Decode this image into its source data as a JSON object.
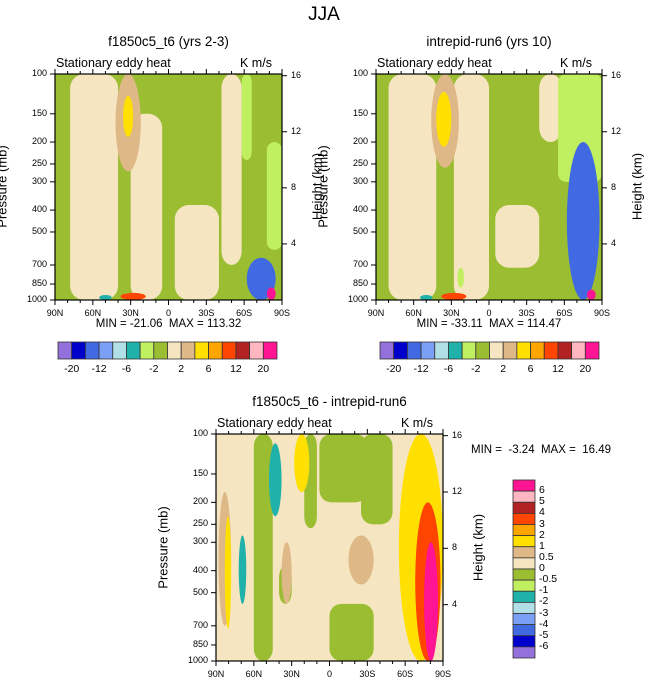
{
  "page": {
    "title": "JJA"
  },
  "chart_data": [
    {
      "type": "heatmap",
      "subtype": "filled-contour latitude-pressure cross section",
      "title": "f1850c5_t6 (yrs 2-3)",
      "left_string": "Stationary eddy heat",
      "right_string": "K m/s",
      "xlabel": "",
      "ylabel": "Pressure (mb)",
      "ylabel_right": "Height (km)",
      "x_ticks": [
        "90N",
        "60N",
        "30N",
        "0",
        "30S",
        "60S",
        "90S"
      ],
      "x_range": [
        90,
        -90
      ],
      "y_ticks": [
        "100",
        "150",
        "200",
        "250",
        "300",
        "400",
        "500",
        "700",
        "850",
        "1000"
      ],
      "y_range_mb": [
        1000,
        100
      ],
      "y_scale": "log",
      "right_ticks": [
        "16",
        "12",
        "8",
        "4"
      ],
      "min_label": "MIN = -21.06",
      "max_label": "MAX = 113.32",
      "min": -21.06,
      "max": 113.32,
      "colorbar": {
        "orientation": "horizontal",
        "colors": [
          "#9370db",
          "#0000cd",
          "#4169e1",
          "#7b9ff5",
          "#b0e0e6",
          "#20b2aa",
          "#c0f060",
          "#9abd32",
          "#f5e5c0",
          "#deb887",
          "#ffe000",
          "#ffa500",
          "#ff4500",
          "#b22222",
          "#ffb6c1",
          "#ff1493"
        ],
        "labels": [
          "-20",
          "-12",
          "-6",
          "-2",
          "2",
          "6",
          "12",
          "20"
        ]
      },
      "features": [
        {
          "level_color": "#deb887",
          "lat": [
            42,
            22
          ],
          "p": [
            100,
            270
          ],
          "desc": "tan maximum near 30N upper troposphere"
        },
        {
          "level_color": "#ffe000",
          "lat": [
            36,
            28
          ],
          "p": [
            125,
            190
          ],
          "desc": "yellow core near 30N 150mb"
        },
        {
          "level_color": "#ff4500",
          "lat": [
            38,
            18
          ],
          "p": [
            930,
            1000
          ],
          "desc": "surface maximum near 30N"
        },
        {
          "level_color": "#20b2aa",
          "lat": [
            55,
            45
          ],
          "p": [
            950,
            1000
          ],
          "desc": "small negative near 50N surface"
        },
        {
          "level_color": "#4169e1",
          "lat": [
            -62,
            -85
          ],
          "p": [
            650,
            1000
          ],
          "desc": "negative region near Antarctica"
        },
        {
          "level_color": "#ff1493",
          "lat": [
            -78,
            -85
          ],
          "p": [
            880,
            1000
          ],
          "desc": "strong positive near 85S surface"
        }
      ]
    },
    {
      "type": "heatmap",
      "subtype": "filled-contour latitude-pressure cross section",
      "title": "intrepid-run6 (yrs 10)",
      "left_string": "Stationary eddy heat",
      "right_string": "K m/s",
      "xlabel": "",
      "ylabel": "Pressure (mb)",
      "ylabel_right": "Height (km)",
      "x_ticks": [
        "90N",
        "60N",
        "30N",
        "0",
        "30S",
        "60S",
        "90S"
      ],
      "x_range": [
        90,
        -90
      ],
      "y_ticks": [
        "100",
        "150",
        "200",
        "250",
        "300",
        "400",
        "500",
        "700",
        "850",
        "1000"
      ],
      "y_range_mb": [
        1000,
        100
      ],
      "y_scale": "log",
      "right_ticks": [
        "16",
        "12",
        "8",
        "4"
      ],
      "min_label": "MIN = -33.11",
      "max_label": "MAX = 114.47",
      "min": -33.11,
      "max": 114.47,
      "colorbar": {
        "orientation": "horizontal",
        "colors": [
          "#9370db",
          "#0000cd",
          "#4169e1",
          "#7b9ff5",
          "#b0e0e6",
          "#20b2aa",
          "#c0f060",
          "#9abd32",
          "#f5e5c0",
          "#deb887",
          "#ffe000",
          "#ffa500",
          "#ff4500",
          "#b22222",
          "#ffb6c1",
          "#ff1493"
        ],
        "labels": [
          "-20",
          "-12",
          "-6",
          "-2",
          "2",
          "6",
          "12",
          "20"
        ]
      },
      "features": [
        {
          "level_color": "#deb887",
          "lat": [
            46,
            24
          ],
          "p": [
            100,
            260
          ],
          "desc": "tan maximum near 35N upper troposphere"
        },
        {
          "level_color": "#ffe000",
          "lat": [
            42,
            30
          ],
          "p": [
            120,
            210
          ],
          "desc": "yellow core near 35N 150mb"
        },
        {
          "level_color": "#ff4500",
          "lat": [
            38,
            18
          ],
          "p": [
            930,
            1000
          ],
          "desc": "surface maximum near 30N"
        },
        {
          "level_color": "#20b2aa",
          "lat": [
            55,
            45
          ],
          "p": [
            950,
            1000
          ],
          "desc": "small negative near 50N surface"
        },
        {
          "level_color": "#4169e1",
          "lat": [
            -62,
            -88
          ],
          "p": [
            200,
            1000
          ],
          "desc": "deep negative column near Antarctica"
        },
        {
          "level_color": "#ff1493",
          "lat": [
            -78,
            -85
          ],
          "p": [
            900,
            1000
          ],
          "desc": "positive near 85S surface"
        }
      ]
    },
    {
      "type": "heatmap",
      "subtype": "filled-contour latitude-pressure cross section (difference)",
      "title": "f1850c5_t6 - intrepid-run6",
      "left_string": "Stationary eddy heat",
      "right_string": "K m/s",
      "xlabel": "",
      "ylabel": "Pressure (mb)",
      "ylabel_right": "Height (km)",
      "x_ticks": [
        "90N",
        "60N",
        "30N",
        "0",
        "30S",
        "60S",
        "90S"
      ],
      "x_range": [
        90,
        -90
      ],
      "y_ticks": [
        "100",
        "150",
        "200",
        "250",
        "300",
        "400",
        "500",
        "700",
        "850",
        "1000"
      ],
      "y_range_mb": [
        1000,
        100
      ],
      "y_scale": "log",
      "right_ticks": [
        "16",
        "12",
        "8",
        "4"
      ],
      "min_label": "MIN =  -3.24",
      "max_label": "MAX =  16.49",
      "min": -3.24,
      "max": 16.49,
      "colorbar": {
        "orientation": "vertical",
        "colors_top_to_bottom": [
          "#ff1493",
          "#ffb6c1",
          "#b22222",
          "#ff4500",
          "#ffa500",
          "#ffe000",
          "#deb887",
          "#f5e5c0",
          "#9abd32",
          "#c0f060",
          "#20b2aa",
          "#b0e0e6",
          "#7b9ff5",
          "#4169e1",
          "#0000cd",
          "#9370db"
        ],
        "labels_top_to_bottom": [
          "6",
          "5",
          "4",
          "3",
          "2",
          "1",
          "0.5",
          "0",
          "-0.5",
          "-1",
          "-2",
          "-3",
          "-4",
          "-5",
          "-6"
        ]
      },
      "features": [
        {
          "level_color": "#20b2aa",
          "lat": [
            48,
            38
          ],
          "p": [
            110,
            230
          ],
          "desc": "negative blob near 45N upper levels"
        },
        {
          "level_color": "#20b2aa",
          "lat": [
            72,
            66
          ],
          "p": [
            280,
            560
          ],
          "desc": "negative blob near 70N mid levels"
        },
        {
          "level_color": "#ffe000",
          "lat": [
            83,
            78
          ],
          "p": [
            230,
            720
          ],
          "desc": "positive strip near 80N"
        },
        {
          "level_color": "#ffe000",
          "lat": [
            28,
            16
          ],
          "p": [
            100,
            180
          ],
          "desc": "positive near 25N upper levels"
        },
        {
          "level_color": "#ffe000",
          "lat": [
            -55,
            -90
          ],
          "p": [
            100,
            1000
          ],
          "desc": "broad positive near 60-90S"
        },
        {
          "level_color": "#ff4500",
          "lat": [
            -68,
            -88
          ],
          "p": [
            200,
            1000
          ],
          "desc": "strong positive near 75S"
        },
        {
          "level_color": "#ff1493",
          "lat": [
            -75,
            -86
          ],
          "p": [
            300,
            1000
          ],
          "desc": "maximum near 80S"
        }
      ]
    }
  ]
}
